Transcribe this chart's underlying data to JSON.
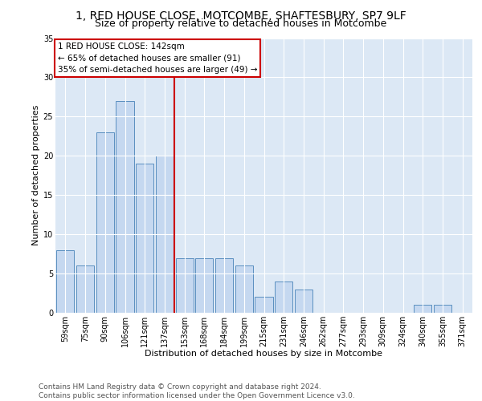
{
  "title": "1, RED HOUSE CLOSE, MOTCOMBE, SHAFTESBURY, SP7 9LF",
  "subtitle": "Size of property relative to detached houses in Motcombe",
  "xlabel": "Distribution of detached houses by size in Motcombe",
  "ylabel": "Number of detached properties",
  "categories": [
    "59sqm",
    "75sqm",
    "90sqm",
    "106sqm",
    "121sqm",
    "137sqm",
    "153sqm",
    "168sqm",
    "184sqm",
    "199sqm",
    "215sqm",
    "231sqm",
    "246sqm",
    "262sqm",
    "277sqm",
    "293sqm",
    "309sqm",
    "324sqm",
    "340sqm",
    "355sqm",
    "371sqm"
  ],
  "values": [
    8,
    6,
    23,
    27,
    19,
    20,
    7,
    7,
    7,
    6,
    2,
    4,
    3,
    0,
    0,
    0,
    0,
    0,
    1,
    1,
    0
  ],
  "bar_color": "#c5d8f0",
  "bar_edge_color": "#5a8fc0",
  "vline_x_index": 5.5,
  "vline_color": "#cc0000",
  "annotation_lines": [
    "1 RED HOUSE CLOSE: 142sqm",
    "← 65% of detached houses are smaller (91)",
    "35% of semi-detached houses are larger (49) →"
  ],
  "annotation_box_color": "#cc0000",
  "ylim": [
    0,
    35
  ],
  "yticks": [
    0,
    5,
    10,
    15,
    20,
    25,
    30,
    35
  ],
  "footer_text": "Contains HM Land Registry data © Crown copyright and database right 2024.\nContains public sector information licensed under the Open Government Licence v3.0.",
  "bg_color": "#dce8f5",
  "grid_color": "#ffffff",
  "title_fontsize": 10,
  "subtitle_fontsize": 9,
  "axis_label_fontsize": 8,
  "tick_fontsize": 7,
  "annotation_fontsize": 7.5,
  "footer_fontsize": 6.5
}
